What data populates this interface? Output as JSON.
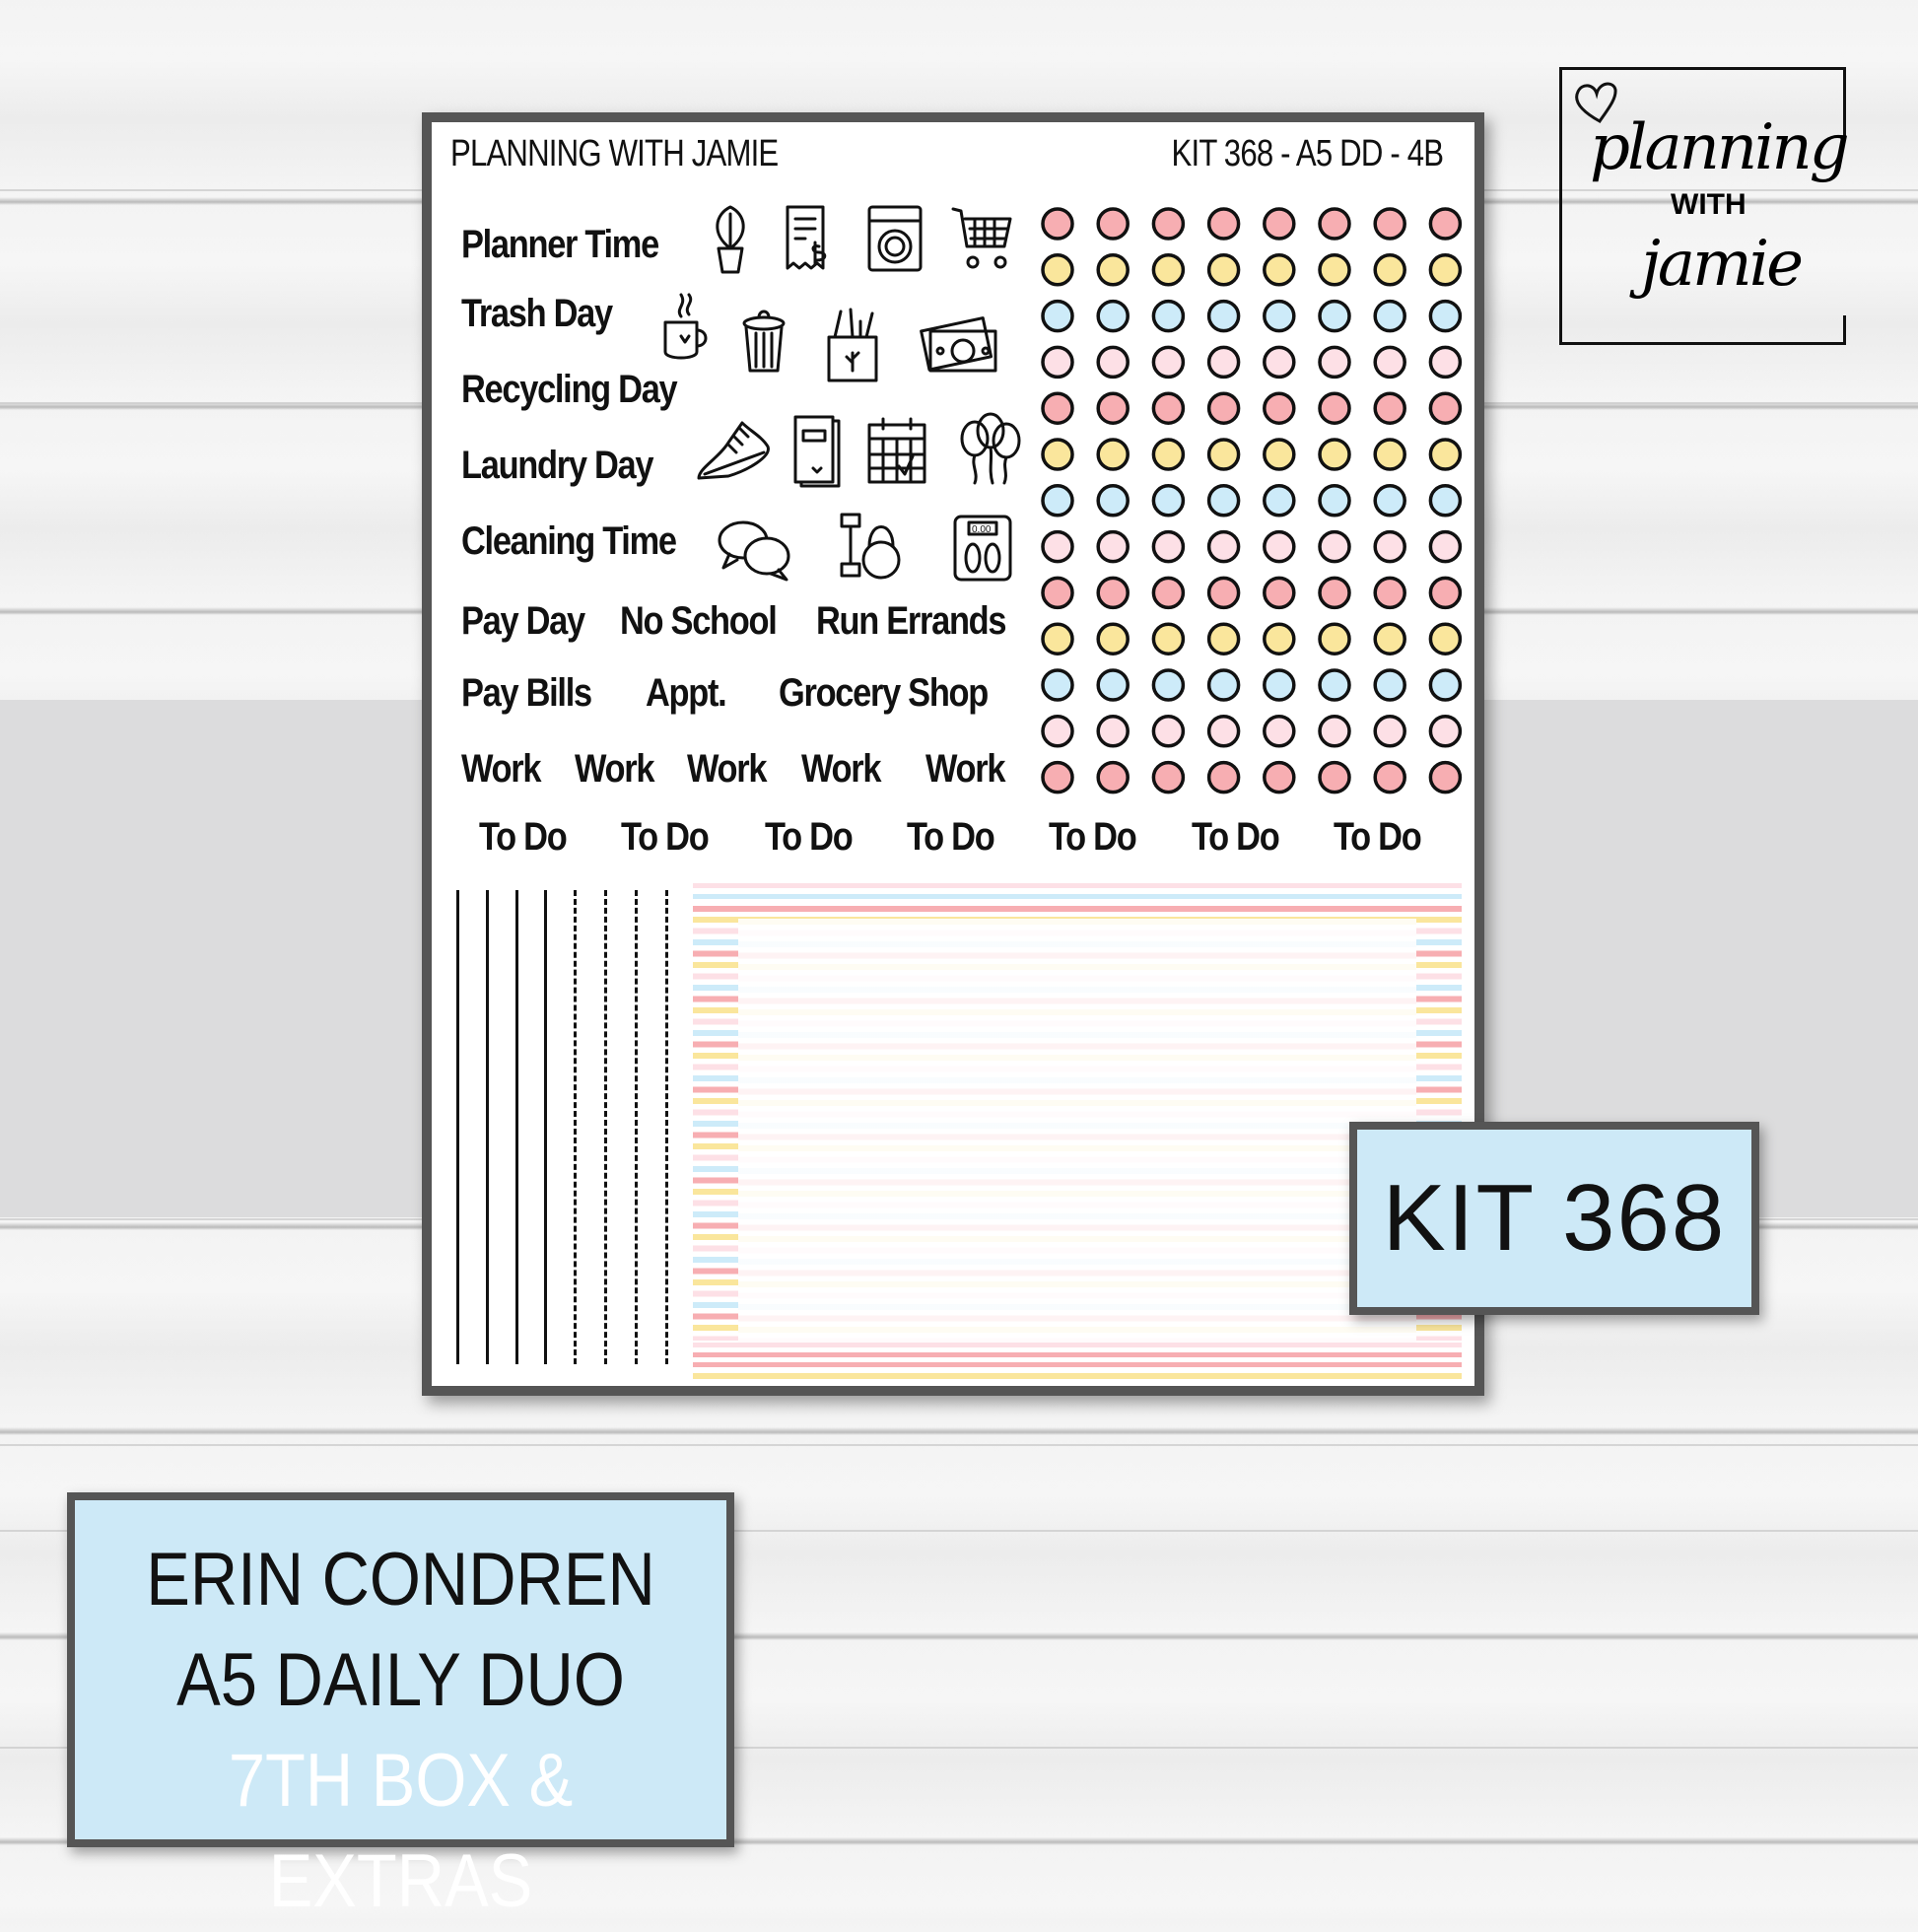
{
  "header": {
    "brand": "PLANNING WITH JAMIE",
    "kit_code": "KIT 368 - A5 DD - 4B"
  },
  "stickers": {
    "labels": [
      "Planner Time",
      "Trash Day",
      "Recycling Day",
      "Laundry Day",
      "Cleaning Time",
      "Pay Day",
      "No School",
      "Run Errands",
      "Pay Bills",
      "Appt.",
      "Grocery Shop",
      "Work",
      "Work",
      "Work",
      "Work",
      "Work",
      "To Do",
      "To Do",
      "To Do",
      "To Do",
      "To Do",
      "To Do",
      "To Do"
    ],
    "icons": [
      "plant-icon",
      "receipt-icon",
      "washing-machine-icon",
      "shopping-cart-icon",
      "coffee-mug-icon",
      "trash-can-icon",
      "grocery-bag-icon",
      "money-icon",
      "sneaker-icon",
      "book-icon",
      "calendar-icon",
      "balloons-icon",
      "speech-bubbles-icon",
      "dumbbell-kettlebell-icon",
      "bathroom-scale-icon"
    ],
    "scale_reading": "0.00",
    "dot_rows": [
      "pink",
      "yellow",
      "blue",
      "light-pink",
      "pink",
      "yellow",
      "blue",
      "light-pink",
      "pink",
      "yellow",
      "blue",
      "light-pink",
      "pink"
    ],
    "dot_columns": 8
  },
  "colors": {
    "pink": "#f7aeb2",
    "yellow": "#fae69c",
    "blue": "#cdebf9",
    "light-pink": "#fde0e6",
    "box": "#cde9f7"
  },
  "logo": {
    "line1": "planning",
    "line2": "WITH",
    "line3": "jamie"
  },
  "kit_badge": "KIT 368",
  "product": {
    "line1": "ERIN CONDREN",
    "line2": "A5 DAILY DUO",
    "line3": "7TH BOX & EXTRAS"
  }
}
